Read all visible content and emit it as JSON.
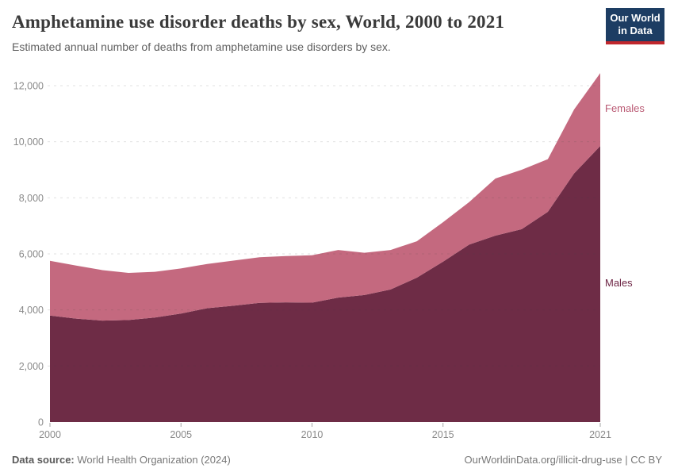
{
  "header": {
    "title": "Amphetamine use disorder deaths by sex, World, 2000 to 2021",
    "subtitle": "Estimated annual number of deaths from amphetamine use disorders by sex."
  },
  "logo": {
    "line1": "Our World",
    "line2": "in Data",
    "bg_color": "#1d3d63",
    "bar_color": "#c0272d"
  },
  "chart_data": {
    "type": "area",
    "stacked": true,
    "title": "Amphetamine use disorder deaths by sex, World, 2000 to 2021",
    "xlabel": "",
    "ylabel": "",
    "x": [
      2000,
      2001,
      2002,
      2003,
      2004,
      2005,
      2006,
      2007,
      2008,
      2009,
      2010,
      2011,
      2012,
      2013,
      2014,
      2015,
      2016,
      2017,
      2018,
      2019,
      2020,
      2021
    ],
    "series": [
      {
        "name": "Males",
        "color": "#6e2c46",
        "label_color": "#6e2645",
        "values": [
          3800,
          3690,
          3620,
          3640,
          3730,
          3870,
          4060,
          4150,
          4250,
          4270,
          4260,
          4440,
          4530,
          4730,
          5150,
          5720,
          6330,
          6650,
          6880,
          7500,
          8870,
          9850
        ]
      },
      {
        "name": "Females",
        "color": "#c4697f",
        "label_color": "#ba5a74",
        "values": [
          1950,
          1890,
          1800,
          1680,
          1630,
          1610,
          1580,
          1610,
          1630,
          1650,
          1690,
          1700,
          1510,
          1410,
          1300,
          1410,
          1520,
          2040,
          2120,
          1880,
          2280,
          2600
        ]
      }
    ],
    "xlim": [
      2000,
      2021
    ],
    "ylim": [
      0,
      12000
    ],
    "yticks": [
      {
        "value": 0,
        "label": "0"
      },
      {
        "value": 2000,
        "label": "2,000"
      },
      {
        "value": 4000,
        "label": "4,000"
      },
      {
        "value": 6000,
        "label": "6,000"
      },
      {
        "value": 8000,
        "label": "8,000"
      },
      {
        "value": 10000,
        "label": "10,000"
      },
      {
        "value": 12000,
        "label": "12,000"
      }
    ],
    "xticks": [
      {
        "value": 2000,
        "label": "2000"
      },
      {
        "value": 2005,
        "label": "2005"
      },
      {
        "value": 2010,
        "label": "2010"
      },
      {
        "value": 2015,
        "label": "2015"
      },
      {
        "value": 2021,
        "label": "2021"
      }
    ],
    "grid": "horizontal-dashed",
    "legend_position": "right-edge-labels",
    "grid_color": "rgba(70,70,70,0.16)",
    "tick_label_color": "#8a8a8a"
  },
  "footer": {
    "source_label": "Data source:",
    "source_value": " World Health Organization (2024)",
    "right": "OurWorldinData.org/illicit-drug-use | CC BY"
  }
}
